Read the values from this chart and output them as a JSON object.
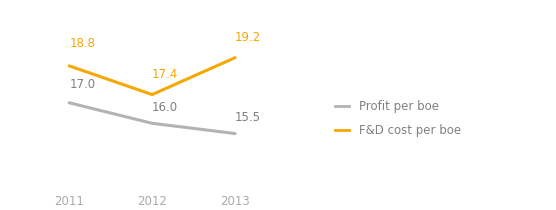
{
  "years": [
    2011,
    2012,
    2013
  ],
  "profit_per_boe": [
    17.0,
    16.0,
    15.5
  ],
  "fd_cost_per_boe": [
    18.8,
    17.4,
    19.2
  ],
  "profit_color": "#b3b3b3",
  "fd_color": "#f5a800",
  "profit_label": "Profit per boe",
  "fd_label": "F&D cost per boe",
  "line_width": 2.2,
  "label_fontsize": 8.5,
  "legend_fontsize": 8.5,
  "tick_fontsize": 8.5,
  "label_color_profit": "#808080",
  "label_color_fd": "#f5a800",
  "legend_label_color": "#808080",
  "background_color": "#ffffff",
  "xlim": [
    2010.3,
    2014.0
  ],
  "ylim": [
    13.0,
    21.5
  ]
}
